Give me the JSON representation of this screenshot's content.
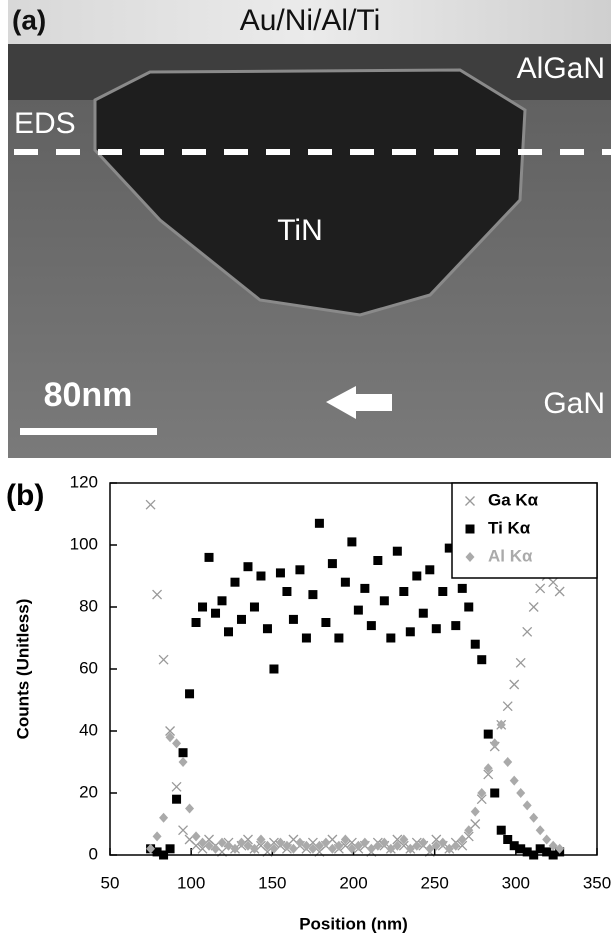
{
  "image_labels": {
    "panel": "(a)",
    "metal": "Au/Ni/Al/Ti",
    "barrier": "AlGaN",
    "line": "EDS",
    "inclusion": "TiN",
    "scale": "80nm",
    "substrate": "GaN"
  },
  "chart_data": {
    "type": "scatter",
    "panel": "(b)",
    "x_label": "Position (nm)",
    "y_label": "Counts (Unitless)",
    "xlim": [
      50,
      350
    ],
    "xticks": [
      50,
      100,
      150,
      200,
      250,
      300,
      350
    ],
    "ylim": [
      0,
      120
    ],
    "yticks": [
      0,
      20,
      40,
      60,
      80,
      100,
      120
    ],
    "legend": "upper right",
    "series": [
      {
        "name": "Ga Kα",
        "color": "#999999",
        "legend_text_color": "#000000",
        "marker": "x",
        "x": [
          75,
          79,
          83,
          87,
          91,
          95,
          99,
          103,
          107,
          111,
          115,
          119,
          123,
          127,
          131,
          135,
          139,
          143,
          147,
          151,
          155,
          159,
          163,
          167,
          171,
          175,
          179,
          183,
          187,
          191,
          195,
          199,
          203,
          207,
          211,
          215,
          219,
          223,
          227,
          231,
          235,
          239,
          243,
          247,
          251,
          255,
          259,
          263,
          267,
          271,
          275,
          279,
          283,
          287,
          291,
          295,
          299,
          303,
          307,
          311,
          315,
          319,
          323,
          327
        ],
        "values": [
          113,
          84,
          63,
          40,
          22,
          8,
          5,
          3,
          2,
          5,
          3,
          1,
          4,
          2,
          3,
          5,
          2,
          3,
          1,
          4,
          3,
          2,
          5,
          3,
          2,
          4,
          1,
          3,
          5,
          2,
          3,
          4,
          2,
          3,
          1,
          4,
          3,
          2,
          5,
          3,
          2,
          4,
          3,
          1,
          5,
          3,
          2,
          4,
          3,
          6,
          10,
          18,
          26,
          35,
          42,
          48,
          55,
          62,
          72,
          80,
          86,
          90,
          88,
          85
        ]
      },
      {
        "name": "Ti Kα",
        "color": "#000000",
        "legend_text_color": "#000000",
        "marker": "square",
        "x": [
          75,
          79,
          83,
          87,
          91,
          95,
          99,
          103,
          107,
          111,
          115,
          119,
          123,
          127,
          131,
          135,
          139,
          143,
          147,
          151,
          155,
          159,
          163,
          167,
          171,
          175,
          179,
          183,
          187,
          191,
          195,
          199,
          203,
          207,
          211,
          215,
          219,
          223,
          227,
          231,
          235,
          239,
          243,
          247,
          251,
          255,
          259,
          263,
          267,
          271,
          275,
          279,
          283,
          287,
          291,
          295,
          299,
          303,
          307,
          311,
          315,
          319,
          323,
          327
        ],
        "values": [
          2,
          1,
          0,
          2,
          18,
          33,
          52,
          75,
          80,
          96,
          78,
          82,
          72,
          88,
          76,
          93,
          80,
          90,
          73,
          60,
          91,
          85,
          76,
          92,
          70,
          84,
          107,
          75,
          94,
          70,
          88,
          101,
          79,
          86,
          74,
          95,
          82,
          70,
          98,
          85,
          72,
          90,
          78,
          92,
          73,
          85,
          99,
          74,
          86,
          80,
          68,
          63,
          39,
          20,
          8,
          5,
          3,
          2,
          1,
          0,
          2,
          1,
          0,
          1
        ]
      },
      {
        "name": "Al Kα",
        "color": "#aaaaaa",
        "legend_text_color": "#aaaaaa",
        "marker": "diamond",
        "x": [
          75,
          79,
          83,
          87,
          91,
          95,
          99,
          103,
          107,
          111,
          115,
          119,
          123,
          127,
          131,
          135,
          139,
          143,
          147,
          151,
          155,
          159,
          163,
          167,
          171,
          175,
          179,
          183,
          187,
          191,
          195,
          199,
          203,
          207,
          211,
          215,
          219,
          223,
          227,
          231,
          235,
          239,
          243,
          247,
          251,
          255,
          259,
          263,
          267,
          271,
          275,
          279,
          283,
          287,
          291,
          295,
          299,
          303,
          307,
          311,
          315,
          319,
          323,
          327
        ],
        "values": [
          2,
          6,
          12,
          38,
          36,
          30,
          15,
          6,
          4,
          3,
          2,
          4,
          3,
          2,
          4,
          3,
          2,
          5,
          3,
          2,
          4,
          3,
          2,
          4,
          3,
          2,
          3,
          4,
          2,
          3,
          5,
          2,
          3,
          4,
          2,
          3,
          4,
          2,
          3,
          5,
          2,
          3,
          4,
          2,
          3,
          4,
          2,
          3,
          5,
          8,
          14,
          20,
          28,
          36,
          42,
          30,
          24,
          20,
          16,
          12,
          8,
          5,
          3,
          2
        ]
      }
    ]
  }
}
